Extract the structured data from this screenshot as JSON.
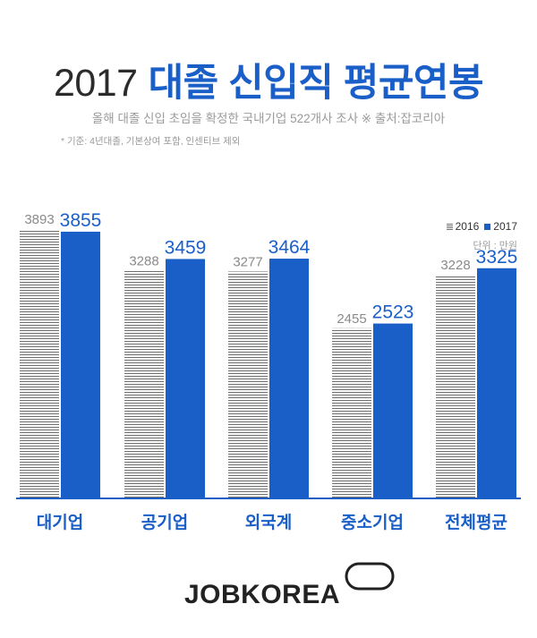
{
  "header": {
    "year": "2017",
    "title": "대졸 신입직 평균연봉",
    "subtitle": "올해 대졸 신입 초임을 확정한 국내기업 522개사 조사  ※ 출처:잡코리아",
    "note": "* 기준: 4년대졸, 기본상여 포함, 인센티브 제외"
  },
  "legend": {
    "label_2016": "2016",
    "label_2017": "2017",
    "unit": "단위 : 만원"
  },
  "colors": {
    "series_2016": "#707070",
    "series_2017": "#1a5ec7",
    "axis": "#1a5ec7"
  },
  "footer": {
    "logo_text": "JOBKOREA"
  },
  "chart_data": {
    "type": "bar",
    "title": "대졸 신입직 평균연봉",
    "categories": [
      "대기업",
      "공기업",
      "외국계",
      "중소기업",
      "전체평균"
    ],
    "series": [
      {
        "name": "2016",
        "values": [
          3893,
          3288,
          3277,
          2455,
          3228
        ]
      },
      {
        "name": "2017",
        "values": [
          3855,
          3459,
          3464,
          2523,
          3325
        ]
      }
    ],
    "data_labels": true,
    "legend_position": "top-right",
    "grid": false
  }
}
